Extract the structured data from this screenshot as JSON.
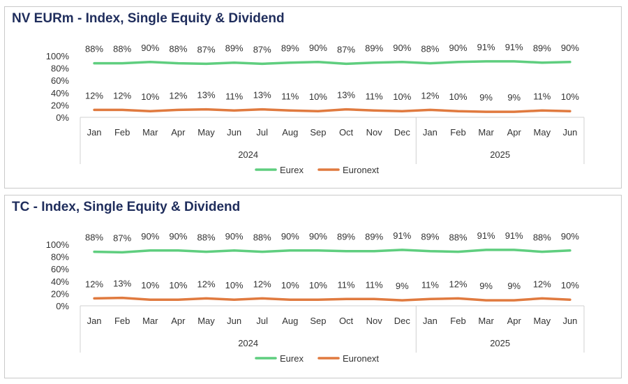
{
  "chart_data": [
    {
      "type": "line",
      "title": "NV EURm - Index, Single Equity & Dividend",
      "categories": [
        "Jan",
        "Feb",
        "Mar",
        "Apr",
        "May",
        "Jun",
        "Jul",
        "Aug",
        "Sep",
        "Oct",
        "Nov",
        "Dec",
        "Jan",
        "Feb",
        "Mar",
        "Apr",
        "May",
        "Jun"
      ],
      "category_groups": [
        {
          "label": "2024",
          "count": 12
        },
        {
          "label": "2025",
          "count": 6
        }
      ],
      "yticks": [
        "0%",
        "20%",
        "40%",
        "60%",
        "80%",
        "100%"
      ],
      "ylim": [
        0,
        100
      ],
      "grid": false,
      "legend_position": "bottom",
      "series": [
        {
          "name": "Eurex",
          "color": "#5fce7f",
          "values": [
            88,
            88,
            90,
            88,
            87,
            89,
            87,
            89,
            90,
            87,
            89,
            90,
            88,
            90,
            91,
            91,
            89,
            90
          ],
          "labels": [
            "88%",
            "88%",
            "90%",
            "88%",
            "87%",
            "89%",
            "87%",
            "89%",
            "90%",
            "87%",
            "89%",
            "90%",
            "88%",
            "90%",
            "91%",
            "91%",
            "89%",
            "90%"
          ]
        },
        {
          "name": "Euronext",
          "color": "#e07a3f",
          "values": [
            12,
            12,
            10,
            12,
            13,
            11,
            13,
            11,
            10,
            13,
            11,
            10,
            12,
            10,
            9,
            9,
            11,
            10
          ],
          "labels": [
            "12%",
            "12%",
            "10%",
            "12%",
            "13%",
            "11%",
            "13%",
            "11%",
            "10%",
            "13%",
            "11%",
            "10%",
            "12%",
            "10%",
            "9%",
            "9%",
            "11%",
            "10%"
          ]
        }
      ]
    },
    {
      "type": "line",
      "title": "TC - Index, Single Equity & Dividend",
      "categories": [
        "Jan",
        "Feb",
        "Mar",
        "Apr",
        "May",
        "Jun",
        "Jul",
        "Aug",
        "Sep",
        "Oct",
        "Nov",
        "Dec",
        "Jan",
        "Feb",
        "Mar",
        "Apr",
        "May",
        "Jun"
      ],
      "category_groups": [
        {
          "label": "2024",
          "count": 12
        },
        {
          "label": "2025",
          "count": 6
        }
      ],
      "yticks": [
        "0%",
        "20%",
        "40%",
        "60%",
        "80%",
        "100%"
      ],
      "ylim": [
        0,
        100
      ],
      "grid": false,
      "legend_position": "bottom",
      "series": [
        {
          "name": "Eurex",
          "color": "#5fce7f",
          "values": [
            88,
            87,
            90,
            90,
            88,
            90,
            88,
            90,
            90,
            89,
            89,
            91,
            89,
            88,
            91,
            91,
            88,
            90
          ],
          "labels": [
            "88%",
            "87%",
            "90%",
            "90%",
            "88%",
            "90%",
            "88%",
            "90%",
            "90%",
            "89%",
            "89%",
            "91%",
            "89%",
            "88%",
            "91%",
            "91%",
            "88%",
            "90%"
          ]
        },
        {
          "name": "Euronext",
          "color": "#e07a3f",
          "values": [
            12,
            13,
            10,
            10,
            12,
            10,
            12,
            10,
            10,
            11,
            11,
            9,
            11,
            12,
            9,
            9,
            12,
            10
          ],
          "labels": [
            "12%",
            "13%",
            "10%",
            "10%",
            "12%",
            "10%",
            "12%",
            "10%",
            "10%",
            "11%",
            "11%",
            "9%",
            "11%",
            "12%",
            "9%",
            "9%",
            "12%",
            "10%"
          ]
        }
      ]
    }
  ]
}
